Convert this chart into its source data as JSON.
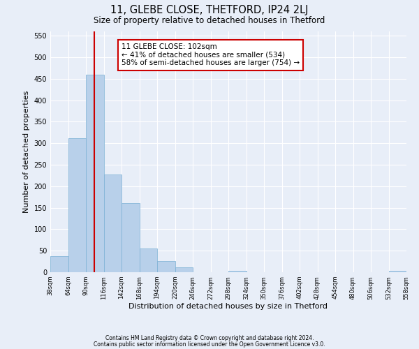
{
  "title": "11, GLEBE CLOSE, THETFORD, IP24 2LJ",
  "subtitle": "Size of property relative to detached houses in Thetford",
  "xlabel": "Distribution of detached houses by size in Thetford",
  "ylabel": "Number of detached properties",
  "bar_edges": [
    38,
    64,
    90,
    116,
    142,
    168,
    194,
    220,
    246,
    272,
    298,
    324,
    350,
    376,
    402,
    428,
    454,
    480,
    506,
    532,
    558
  ],
  "bar_heights": [
    38,
    312,
    459,
    228,
    160,
    55,
    26,
    12,
    0,
    0,
    4,
    0,
    0,
    0,
    0,
    0,
    0,
    0,
    0,
    4
  ],
  "bar_color": "#b8d0ea",
  "bar_edge_color": "#7aafd4",
  "property_size": 102,
  "vline_x": 102,
  "vline_color": "#cc0000",
  "annotation_text": "11 GLEBE CLOSE: 102sqm\n← 41% of detached houses are smaller (534)\n58% of semi-detached houses are larger (754) →",
  "annotation_box_color": "#ffffff",
  "annotation_box_edge_color": "#cc0000",
  "ylim": [
    0,
    560
  ],
  "yticks": [
    0,
    50,
    100,
    150,
    200,
    250,
    300,
    350,
    400,
    450,
    500,
    550
  ],
  "footer_line1": "Contains HM Land Registry data © Crown copyright and database right 2024.",
  "footer_line2": "Contains public sector information licensed under the Open Government Licence v3.0.",
  "bg_color": "#e8eef8",
  "plot_bg_color": "#e8eef8"
}
